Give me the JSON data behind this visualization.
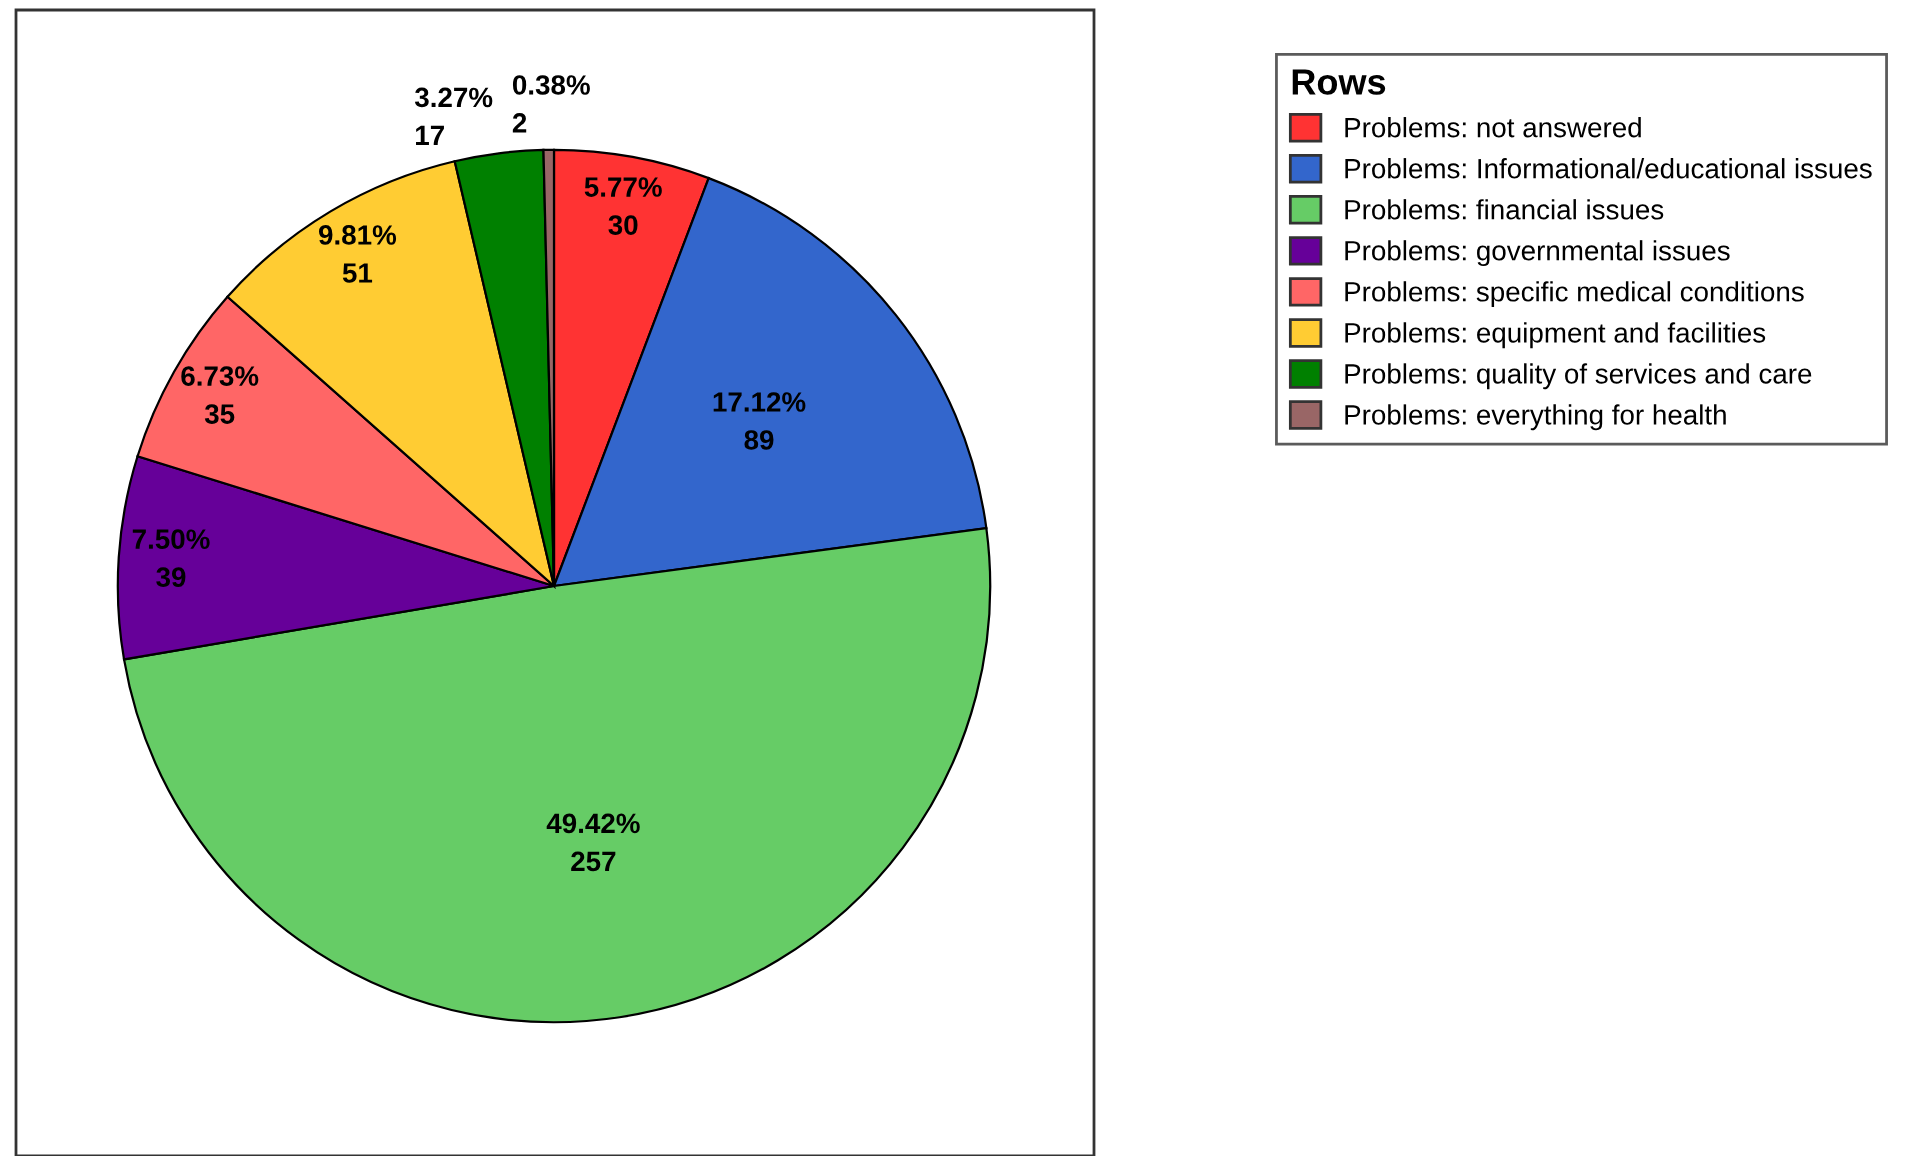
{
  "chart_data": {
    "type": "pie",
    "legend_title": "Rows",
    "legend": "top right",
    "categories": [
      "Problems: not answered",
      "Problems: Informational/educational issues",
      "Problems: financial issues",
      "Problems: governmental issues",
      "Problems: specific medical conditions",
      "Problems: equipment and facilities",
      "Problems: quality of services and care",
      "Problems: everything for health"
    ],
    "values": [
      30,
      89,
      257,
      39,
      35,
      51,
      17,
      2
    ],
    "value_labels": [
      "5.77%\n30",
      "17.12%\n89",
      "49.42%\n257",
      "7.50%\n39",
      "6.73%\n35",
      "9.81%\n51",
      "3.27%\n17",
      "0.38%\n2"
    ],
    "colors": [
      "#ff3333",
      "#3366cc",
      "#66cc66",
      "#660099",
      "#ff6666",
      "#ffcc33",
      "#008000",
      "#996666"
    ]
  }
}
